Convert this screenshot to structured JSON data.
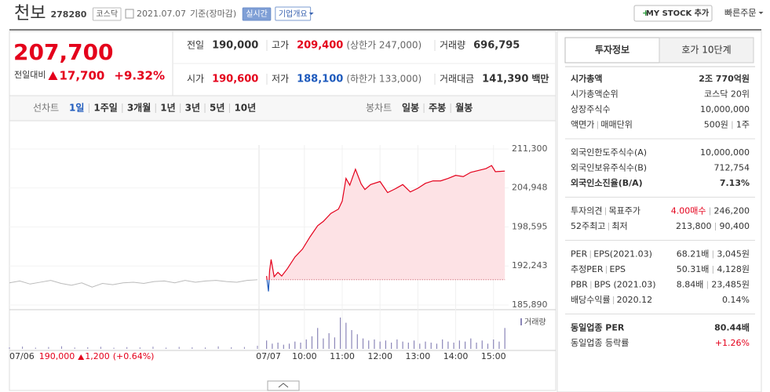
{
  "header": {
    "name": "천보",
    "code": "278280",
    "market": "코스닥",
    "date": "2021.07.07",
    "basis": "기준(장마감)",
    "realtime": "실시간",
    "company": "기업개요",
    "mystock": "MY STOCK 추가",
    "quick_order": "빠른주문"
  },
  "price": {
    "current": "207,700",
    "change_label": "전일대비",
    "change": "17,700",
    "change_rate": "+9.32%",
    "color": "#e4001b"
  },
  "summary": {
    "rows": [
      [
        {
          "label": "전일",
          "value": "190,000"
        },
        {
          "label": "고가",
          "value": "209,400",
          "note": "(상한가 247,000)",
          "color": "#e4001b"
        },
        {
          "label": "거래량",
          "value": "696,795"
        }
      ],
      [
        {
          "label": "시가",
          "value": "190,600",
          "color": "#e4001b"
        },
        {
          "label": "저가",
          "value": "188,100",
          "note": "(하한가 133,000)",
          "color": "#1f5bbd"
        },
        {
          "label": "거래대금",
          "value": "141,390",
          "note": "백만"
        }
      ]
    ]
  },
  "chart_tabs": {
    "line_label": "선차트",
    "line_periods": [
      "1일",
      "1주일",
      "3개월",
      "1년",
      "3년",
      "5년",
      "10년"
    ],
    "candle_label": "봉차트",
    "candle_periods": [
      "일봉",
      "주봉",
      "월봉"
    ]
  },
  "chart": {
    "type": "line",
    "days": [
      "07/06",
      "07/07"
    ],
    "ylim": [
      185890,
      211300
    ],
    "yticks": [
      {
        "value": 211300,
        "label": "211,300"
      },
      {
        "value": 204948,
        "label": "204,948"
      },
      {
        "value": 198595,
        "label": "198,595"
      },
      {
        "value": 192243,
        "label": "192,243"
      },
      {
        "value": 185890,
        "label": "185,890"
      }
    ],
    "xlim": [
      8.8,
      15.4
    ],
    "xticks": [
      {
        "value": 10,
        "label": "10:00"
      },
      {
        "value": 11,
        "label": "11:00"
      },
      {
        "value": 12,
        "label": "12:00"
      },
      {
        "value": 13,
        "label": "13:00"
      },
      {
        "value": 14,
        "label": "14:00"
      },
      {
        "value": 15,
        "label": "15:00"
      }
    ],
    "baseline": 190000,
    "rise_color": "#e4001b",
    "fall_color": "#1f5bbd",
    "previous_color": "#bbbbbb",
    "fill_color": "#fde2e5",
    "previous": {
      "values": [
        189500,
        189800,
        189300,
        189600,
        189900,
        189400,
        189100,
        189500,
        188800,
        189400,
        189200,
        189500,
        189600,
        189400,
        189700,
        189800,
        189500,
        189900,
        189600,
        189800,
        189900,
        189700,
        189600,
        189900,
        190000
      ]
    },
    "today": {
      "x": [
        9.0,
        9.05,
        9.08,
        9.12,
        9.2,
        9.3,
        9.4,
        9.55,
        9.75,
        9.95,
        10.15,
        10.35,
        10.5,
        10.7,
        10.9,
        11.0,
        11.1,
        11.2,
        11.35,
        11.5,
        11.6,
        11.75,
        12.0,
        12.2,
        12.4,
        12.6,
        12.8,
        13.0,
        13.2,
        13.4,
        13.6,
        13.8,
        14.0,
        14.2,
        14.4,
        14.6,
        14.8,
        14.95,
        15.05,
        15.3
      ],
      "values": [
        190600,
        188100,
        191500,
        193300,
        190500,
        191200,
        190600,
        191800,
        193700,
        195000,
        197000,
        198800,
        199500,
        200800,
        201500,
        202800,
        206500,
        205400,
        208000,
        205600,
        204700,
        205500,
        206000,
        204200,
        204800,
        205500,
        204300,
        204900,
        205700,
        206100,
        206100,
        206500,
        207000,
        206800,
        207500,
        207800,
        208100,
        208600,
        207600,
        207700
      ]
    },
    "volume": {
      "label": "거래량",
      "color": "#8b86b8",
      "previous": [
        1500,
        2200,
        1200,
        1800,
        2500,
        1300,
        1600,
        2000,
        1100,
        1700,
        1400,
        2100,
        1200,
        1900,
        1500,
        1300,
        2400,
        1600,
        1800,
        3000
      ],
      "today": {
        "x": [
          9,
          9.15,
          9.3,
          9.45,
          9.6,
          9.75,
          9.9,
          10.05,
          10.2,
          10.35,
          10.5,
          10.65,
          10.8,
          10.95,
          11.1,
          11.25,
          11.4,
          11.55,
          11.7,
          11.85,
          12,
          12.15,
          12.3,
          12.45,
          12.6,
          12.75,
          12.9,
          13.05,
          13.2,
          13.35,
          13.5,
          13.65,
          13.8,
          13.95,
          14.1,
          14.25,
          14.4,
          14.55,
          14.7,
          14.85,
          15,
          15.15,
          15.3
        ],
        "values": [
          8000,
          5000,
          6000,
          4000,
          5000,
          7000,
          6000,
          9000,
          12000,
          20000,
          10000,
          15000,
          11000,
          30000,
          25000,
          18000,
          14000,
          10000,
          8000,
          9000,
          7000,
          8000,
          6000,
          9000,
          7000,
          6000,
          8000,
          5000,
          7000,
          6000,
          5000,
          9000,
          7000,
          6000,
          8000,
          7000,
          10000,
          6000,
          8000,
          5000,
          9000,
          7000,
          20000
        ]
      }
    },
    "footer": {
      "close": "190,000",
      "change": "1,200",
      "rate": "(+0.64%)"
    }
  },
  "investment": {
    "tabs": [
      "투자정보",
      "호가 10단계"
    ],
    "sections": [
      [
        {
          "labels": [
            "시가총액"
          ],
          "values": [
            "2조 770억원"
          ],
          "bold": true
        },
        {
          "labels": [
            "시가총액순위"
          ],
          "values": [
            "코스닥 20위"
          ]
        },
        {
          "labels": [
            "상장주식수"
          ],
          "values": [
            "10,000,000"
          ]
        },
        {
          "labels": [
            "액면가",
            "매매단위"
          ],
          "values": [
            "500원",
            "1주"
          ]
        }
      ],
      [
        {
          "labels": [
            "외국인한도주식수(A)"
          ],
          "values": [
            "10,000,000"
          ]
        },
        {
          "labels": [
            "외국인보유주식수(B)"
          ],
          "values": [
            "712,754"
          ]
        },
        {
          "labels": [
            "외국인소진율(B/A)"
          ],
          "values": [
            "7.13%"
          ],
          "bold": true
        }
      ],
      [
        {
          "labels": [
            "투자의견",
            "목표주가"
          ],
          "values": [
            "4.00매수",
            "246,200"
          ],
          "value_colors": [
            "#e4001b",
            "#333333"
          ]
        },
        {
          "labels": [
            "52주최고",
            "최저"
          ],
          "values": [
            "213,800",
            "90,400"
          ]
        }
      ],
      [
        {
          "labels": [
            "PER",
            "EPS(2021.03)"
          ],
          "values": [
            "68.21배",
            "3,045원"
          ]
        },
        {
          "labels": [
            "추정PER",
            "EPS"
          ],
          "values": [
            "50.31배",
            "4,128원"
          ]
        },
        {
          "labels": [
            "PBR",
            "BPS (2021.03)"
          ],
          "values": [
            "8.84배",
            "23,485원"
          ]
        },
        {
          "labels": [
            "배당수익률",
            "2020.12"
          ],
          "values": [
            "0.14%"
          ]
        }
      ],
      [
        {
          "labels": [
            "동일업종 PER"
          ],
          "values": [
            "80.44배"
          ],
          "bold": true
        },
        {
          "labels": [
            "동일업종 등락률"
          ],
          "values": [
            "+1.26%"
          ],
          "value_colors": [
            "#e4001b"
          ]
        }
      ]
    ]
  }
}
